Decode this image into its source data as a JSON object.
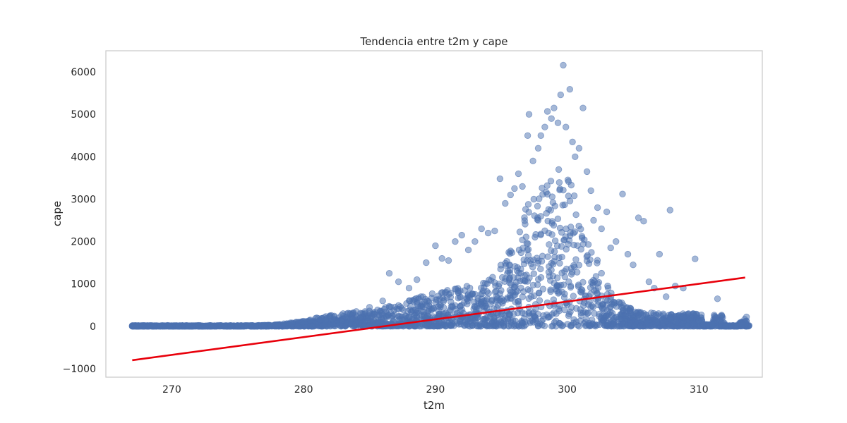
{
  "chart_data": {
    "type": "scatter",
    "title": "Tendencia entre t2m y cape",
    "xlabel": "t2m",
    "ylabel": "cape",
    "xlim": [
      265.0,
      314.8
    ],
    "ylim": [
      -1200,
      6500
    ],
    "xticks": [
      270,
      280,
      290,
      300,
      310
    ],
    "yticks": [
      -1000,
      0,
      1000,
      2000,
      3000,
      4000,
      5000,
      6000
    ],
    "xtick_labels": [
      "270",
      "280",
      "290",
      "300",
      "310"
    ],
    "ytick_labels": [
      "−1000",
      "0",
      "1000",
      "2000",
      "3000",
      "4000",
      "5000",
      "6000"
    ],
    "grid": false,
    "legend": "none",
    "series": [
      {
        "kind": "scatter",
        "color": "#4c72b0",
        "opacity": 0.5,
        "points": [
          [
            267.0,
            0
          ],
          [
            267.8,
            0
          ],
          [
            268.5,
            0
          ],
          [
            269.3,
            0
          ],
          [
            269.8,
            5
          ],
          [
            270.5,
            0
          ],
          [
            271.2,
            8
          ],
          [
            272.0,
            5
          ],
          [
            273.0,
            10
          ],
          [
            274.0,
            12
          ],
          [
            275.0,
            15
          ],
          [
            276.0,
            20
          ],
          [
            277.0,
            25
          ],
          [
            278.0,
            40
          ],
          [
            278.5,
            60
          ],
          [
            279.0,
            80
          ],
          [
            280.0,
            120
          ],
          [
            280.5,
            150
          ],
          [
            281.0,
            200
          ],
          [
            282.0,
            250
          ],
          [
            283.0,
            300
          ],
          [
            284.0,
            350
          ],
          [
            285.0,
            450
          ],
          [
            286.0,
            600
          ],
          [
            286.5,
            1250
          ],
          [
            287.2,
            1050
          ],
          [
            288.0,
            900
          ],
          [
            288.6,
            1100
          ],
          [
            289.3,
            1500
          ],
          [
            290.0,
            1900
          ],
          [
            290.5,
            1600
          ],
          [
            291.0,
            1550
          ],
          [
            291.5,
            2000
          ],
          [
            292.0,
            2150
          ],
          [
            292.5,
            1800
          ],
          [
            293.0,
            2000
          ],
          [
            293.5,
            2300
          ],
          [
            294.0,
            2200
          ],
          [
            294.5,
            2250
          ],
          [
            294.9,
            3480
          ],
          [
            295.3,
            2900
          ],
          [
            295.7,
            3100
          ],
          [
            296.0,
            3250
          ],
          [
            296.3,
            3600
          ],
          [
            296.6,
            3300
          ],
          [
            297.0,
            4500
          ],
          [
            297.1,
            5000
          ],
          [
            297.4,
            3900
          ],
          [
            297.8,
            4200
          ],
          [
            298.0,
            4500
          ],
          [
            298.3,
            4700
          ],
          [
            298.5,
            5070
          ],
          [
            298.8,
            4900
          ],
          [
            299.0,
            5150
          ],
          [
            299.3,
            4800
          ],
          [
            299.5,
            5460
          ],
          [
            299.7,
            6160
          ],
          [
            299.9,
            4700
          ],
          [
            300.2,
            5590
          ],
          [
            300.4,
            4350
          ],
          [
            300.6,
            4000
          ],
          [
            300.9,
            4200
          ],
          [
            301.2,
            5150
          ],
          [
            301.5,
            3650
          ],
          [
            301.8,
            3200
          ],
          [
            302.0,
            2500
          ],
          [
            302.3,
            2800
          ],
          [
            302.6,
            2300
          ],
          [
            303.0,
            2700
          ],
          [
            303.3,
            1850
          ],
          [
            303.7,
            2000
          ],
          [
            304.2,
            3120
          ],
          [
            304.6,
            1700
          ],
          [
            305.0,
            1450
          ],
          [
            305.4,
            2560
          ],
          [
            305.8,
            2480
          ],
          [
            306.2,
            1050
          ],
          [
            306.6,
            900
          ],
          [
            307.0,
            1700
          ],
          [
            307.5,
            700
          ],
          [
            307.8,
            2740
          ],
          [
            308.2,
            950
          ],
          [
            308.8,
            900
          ],
          [
            309.2,
            300
          ],
          [
            309.7,
            1590
          ],
          [
            310.3,
            50
          ],
          [
            311.0,
            40
          ],
          [
            311.4,
            650
          ],
          [
            312.0,
            0
          ],
          [
            312.8,
            0
          ],
          [
            313.6,
            220
          ]
        ]
      },
      {
        "kind": "line",
        "color": "#e8000b",
        "points": [
          [
            267.0,
            -800
          ],
          [
            313.5,
            1150
          ]
        ]
      }
    ]
  }
}
